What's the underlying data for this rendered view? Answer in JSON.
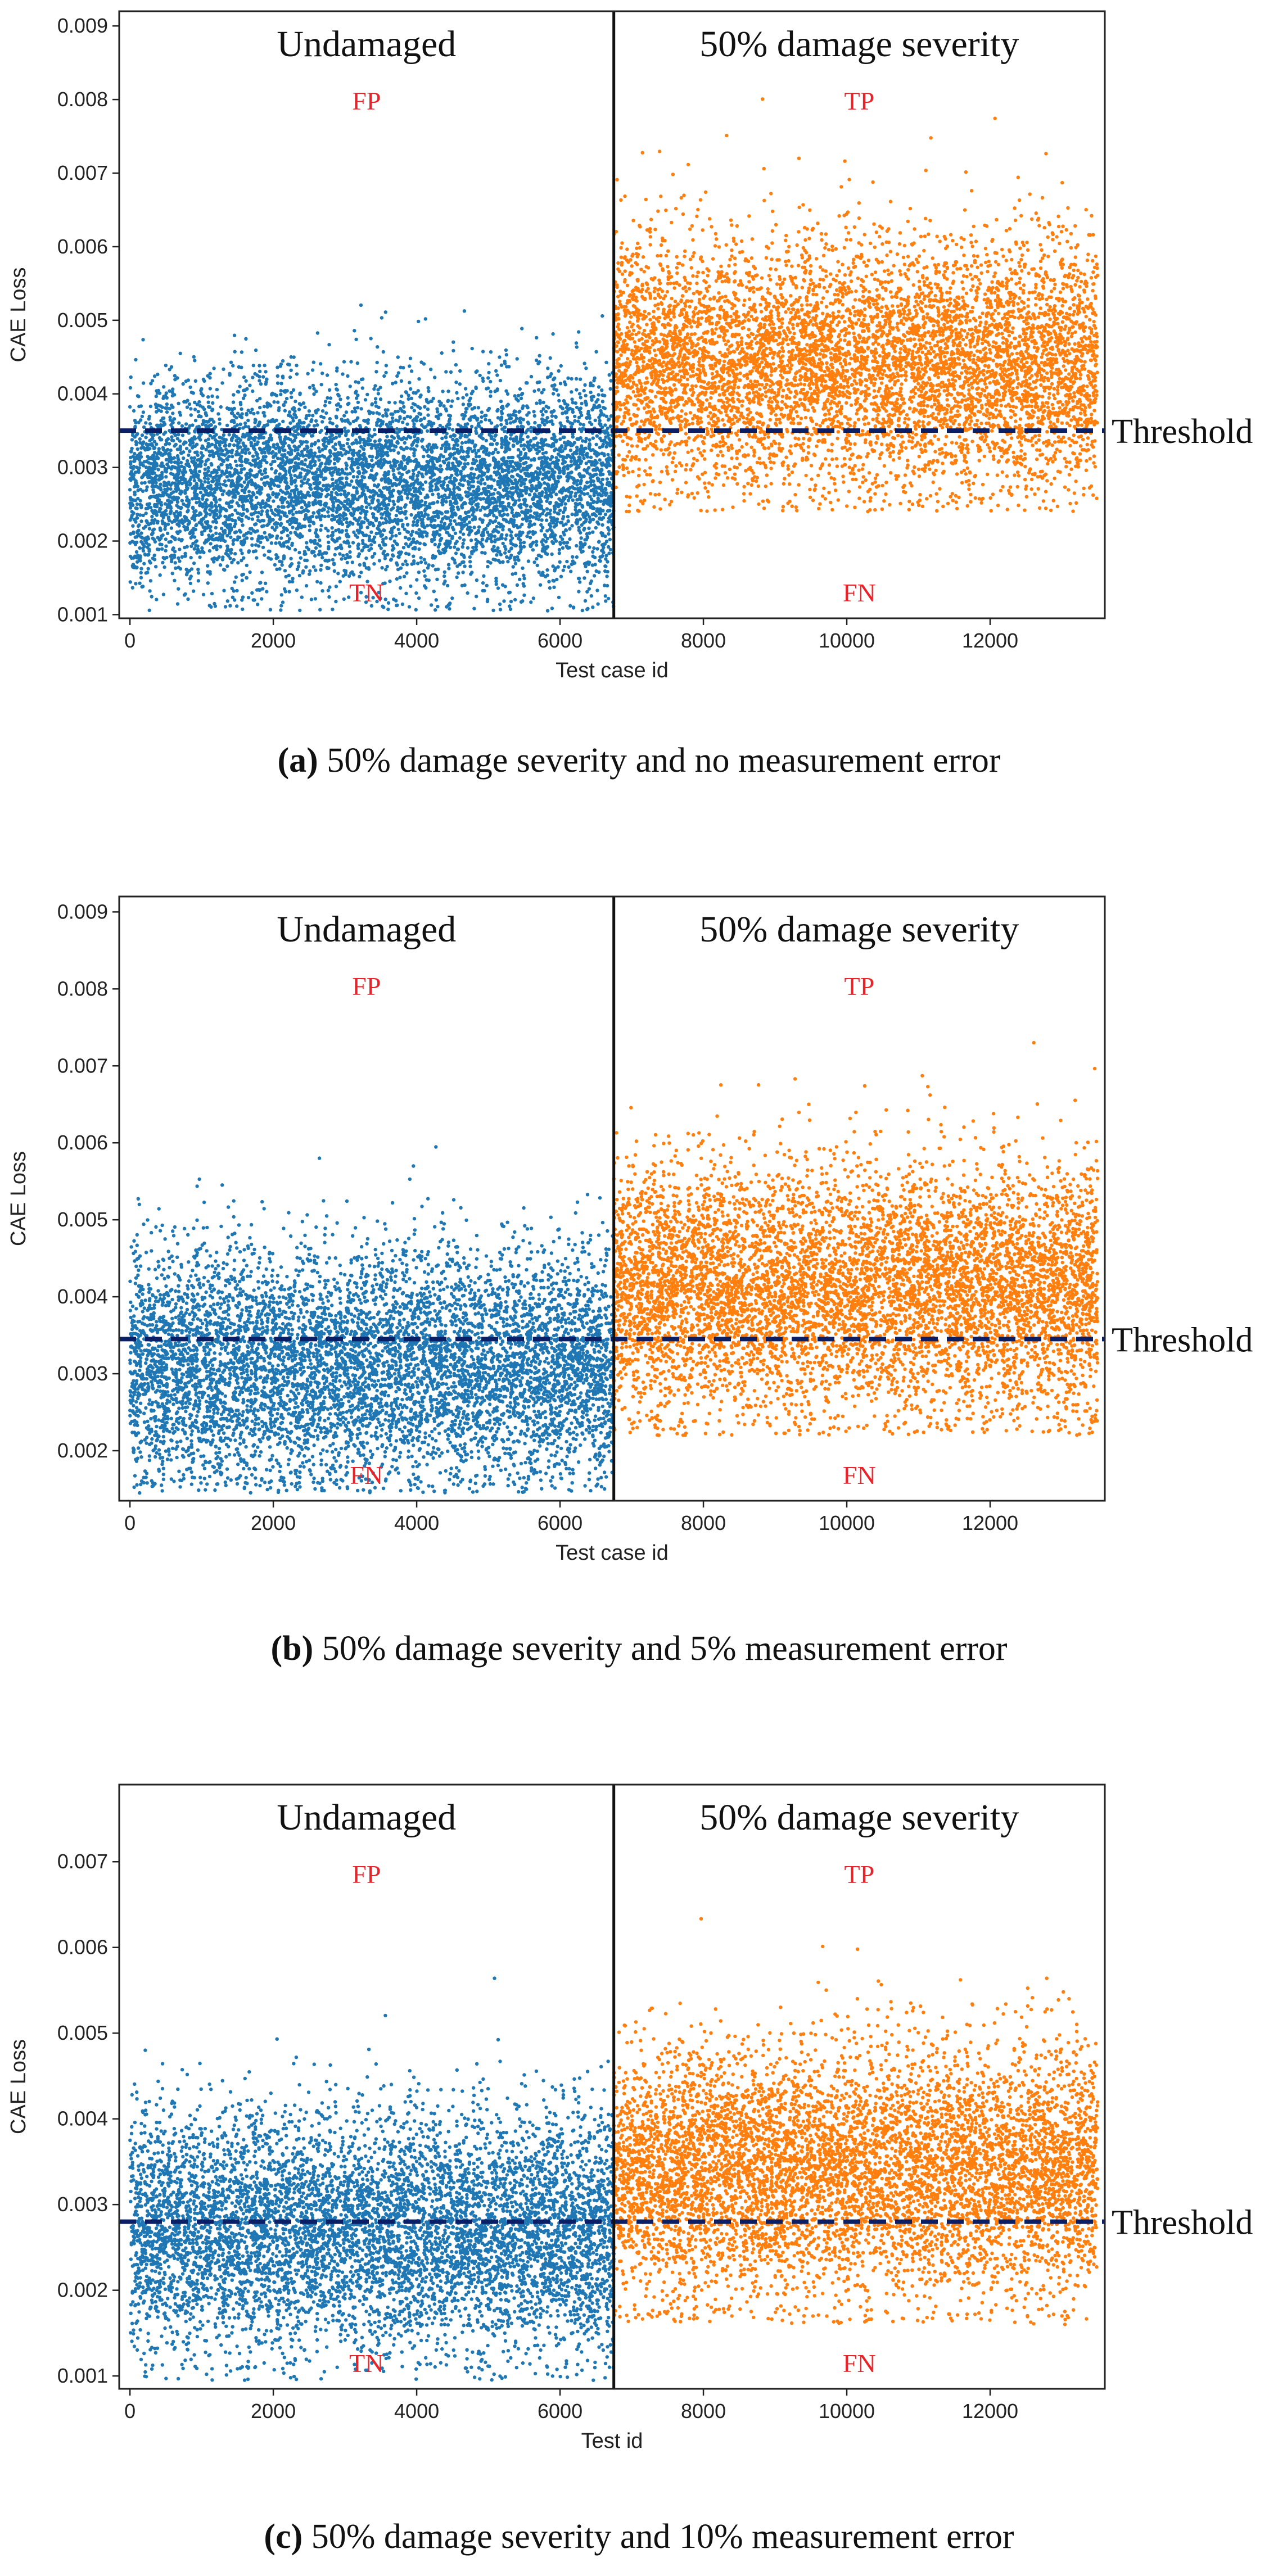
{
  "chart_data": [
    {
      "type": "scatter",
      "panel": "a",
      "caption_letter": "(a)",
      "caption_text": "50% damage severity and no measurement error",
      "xlabel": "Test case id",
      "ylabel": "CAE Loss",
      "xlim": [
        -150,
        13600
      ],
      "ylim": [
        0.00095,
        0.0092
      ],
      "xticks": [
        0,
        2000,
        4000,
        6000,
        8000,
        10000,
        12000
      ],
      "xtick_labels": [
        "0",
        "2000",
        "4000",
        "6000",
        "8000",
        "10000",
        "12000"
      ],
      "yticks": [
        0.001,
        0.002,
        0.003,
        0.004,
        0.005,
        0.006,
        0.007,
        0.008,
        0.009
      ],
      "ytick_labels": [
        "0.001",
        "0.002",
        "0.003",
        "0.004",
        "0.005",
        "0.006",
        "0.007",
        "0.008",
        "0.009"
      ],
      "split_x": 6750,
      "threshold": 0.0035,
      "threshold_label": "Threshold",
      "region_labels": {
        "left": "Undamaged",
        "right": "50% damage severity"
      },
      "quadrant_labels": {
        "top_left": "FP",
        "top_right": "TP",
        "bottom_left": "TN",
        "bottom_right": "FN"
      },
      "series": [
        {
          "name": "Undamaged",
          "color": "#1f77b4",
          "x_range": [
            0,
            6750
          ],
          "mean": 0.0028,
          "sd": 0.0007,
          "count": 6750,
          "min": 0.00105,
          "max": 0.0061
        },
        {
          "name": "50% damage severity",
          "color": "#ff7f0e",
          "x_range": [
            6750,
            13500
          ],
          "mean": 0.0044,
          "sd": 0.00085,
          "count": 6750,
          "min": 0.0024,
          "max": 0.0085
        }
      ]
    },
    {
      "type": "scatter",
      "panel": "b",
      "caption_letter": "(b)",
      "caption_text": "50% damage severity and 5% measurement error",
      "xlabel": "Test case id",
      "ylabel": "CAE Loss",
      "xlim": [
        -150,
        13600
      ],
      "ylim": [
        0.00135,
        0.0092
      ],
      "xticks": [
        0,
        2000,
        4000,
        6000,
        8000,
        10000,
        12000
      ],
      "xtick_labels": [
        "0",
        "2000",
        "4000",
        "6000",
        "8000",
        "10000",
        "12000"
      ],
      "yticks": [
        0.002,
        0.003,
        0.004,
        0.005,
        0.006,
        0.007,
        0.008,
        0.009
      ],
      "ytick_labels": [
        "0.002",
        "0.003",
        "0.004",
        "0.005",
        "0.006",
        "0.007",
        "0.008",
        "0.009"
      ],
      "split_x": 6750,
      "threshold": 0.00345,
      "threshold_label": "Threshold",
      "region_labels": {
        "left": "Undamaged",
        "right": "50% damage severity"
      },
      "quadrant_labels": {
        "top_left": "FP",
        "top_right": "TP",
        "bottom_left": "FN",
        "bottom_right": "FN"
      },
      "series": [
        {
          "name": "Undamaged",
          "color": "#1f77b4",
          "x_range": [
            0,
            6750
          ],
          "mean": 0.0031,
          "sd": 0.00075,
          "count": 6750,
          "min": 0.00145,
          "max": 0.0066
        },
        {
          "name": "50% damage severity",
          "color": "#ff7f0e",
          "x_range": [
            6750,
            13500
          ],
          "mean": 0.0041,
          "sd": 0.0008,
          "count": 6750,
          "min": 0.0022,
          "max": 0.0084
        }
      ]
    },
    {
      "type": "scatter",
      "panel": "c",
      "caption_letter": "(c)",
      "caption_text": "50% damage severity and 10% measurement error",
      "xlabel": "Test id",
      "ylabel": "CAE Loss",
      "xlim": [
        -150,
        13600
      ],
      "ylim": [
        0.00085,
        0.0079
      ],
      "xticks": [
        0,
        2000,
        4000,
        6000,
        8000,
        10000,
        12000
      ],
      "xtick_labels": [
        "0",
        "2000",
        "4000",
        "6000",
        "8000",
        "10000",
        "12000"
      ],
      "yticks": [
        0.001,
        0.002,
        0.003,
        0.004,
        0.005,
        0.006,
        0.007
      ],
      "ytick_labels": [
        "0.001",
        "0.002",
        "0.003",
        "0.004",
        "0.005",
        "0.006",
        "0.007"
      ],
      "split_x": 6750,
      "threshold": 0.0028,
      "threshold_label": "Threshold",
      "region_labels": {
        "left": "Undamaged",
        "right": "50% damage severity"
      },
      "quadrant_labels": {
        "top_left": "FP",
        "top_right": "TP",
        "bottom_left": "TN",
        "bottom_right": "FN"
      },
      "series": [
        {
          "name": "Undamaged",
          "color": "#1f77b4",
          "x_range": [
            0,
            6750
          ],
          "mean": 0.0027,
          "sd": 0.0007,
          "count": 6750,
          "min": 0.00095,
          "max": 0.006
        },
        {
          "name": "50% damage severity",
          "color": "#ff7f0e",
          "x_range": [
            6750,
            13500
          ],
          "mean": 0.0034,
          "sd": 0.00072,
          "count": 6750,
          "min": 0.0016,
          "max": 0.0072
        }
      ]
    }
  ],
  "colors": {
    "threshold_line": "#0b1f66",
    "quadrant_label": "#e8242a",
    "frame": "#222222",
    "split_line": "#111111"
  }
}
